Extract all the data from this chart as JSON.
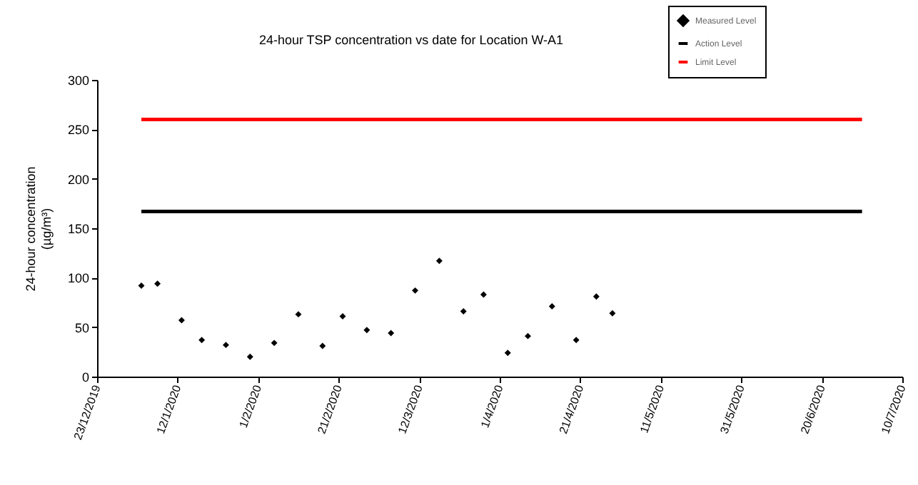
{
  "chart_data": {
    "type": "scatter",
    "title": "24-hour TSP concentration vs date for Location W-A1",
    "ylabel": "24-hour concentration\n(µg/m³)",
    "x": [
      "2020-01-03",
      "2020-01-07",
      "2020-01-13",
      "2020-01-18",
      "2020-01-24",
      "2020-01-30",
      "2020-02-05",
      "2020-02-11",
      "2020-02-17",
      "2020-02-22",
      "2020-02-28",
      "2020-03-05",
      "2020-03-11",
      "2020-03-17",
      "2020-03-23",
      "2020-03-28",
      "2020-04-03",
      "2020-04-08",
      "2020-04-14",
      "2020-04-20",
      "2020-04-25",
      "2020-04-29"
    ],
    "series": [
      {
        "name": "Measured Level",
        "color": "#000000",
        "marker": "diamond",
        "values": [
          92,
          94,
          57,
          37,
          32,
          20,
          34,
          63,
          31,
          61,
          47,
          44,
          87,
          117,
          66,
          83,
          24,
          41,
          71,
          37,
          81,
          64
        ]
      },
      {
        "name": "Action Level",
        "type": "line",
        "color": "#000000",
        "line_style": "solid",
        "x": [
          "2020-01-03",
          "2020-06-30"
        ],
        "values": [
          167,
          167
        ]
      },
      {
        "name": "Limit Level",
        "type": "line",
        "color": "#ff0000",
        "line_style": "solid",
        "x": [
          "2020-01-03",
          "2020-06-30"
        ],
        "values": [
          260,
          260
        ]
      }
    ],
    "xlim": [
      "2019-12-23",
      "2020-07-10"
    ],
    "xticks": [
      {
        "value": "2019-12-23",
        "label": "23/12/2019"
      },
      {
        "value": "2020-01-12",
        "label": "12/1/2020"
      },
      {
        "value": "2020-02-01",
        "label": "1/2/2020"
      },
      {
        "value": "2020-02-21",
        "label": "21/2/2020"
      },
      {
        "value": "2020-03-12",
        "label": "12/3/2020"
      },
      {
        "value": "2020-04-01",
        "label": "1/4/2020"
      },
      {
        "value": "2020-04-21",
        "label": "21/4/2020"
      },
      {
        "value": "2020-05-11",
        "label": "11/5/2020"
      },
      {
        "value": "2020-05-31",
        "label": "31/5/2020"
      },
      {
        "value": "2020-06-20",
        "label": "20/6/2020"
      },
      {
        "value": "2020-07-10",
        "label": "10/7/2020"
      }
    ],
    "ylim": [
      0,
      300
    ],
    "yticks": [
      0,
      50,
      100,
      150,
      200,
      250,
      300
    ],
    "grid": false,
    "legend": "top right"
  }
}
